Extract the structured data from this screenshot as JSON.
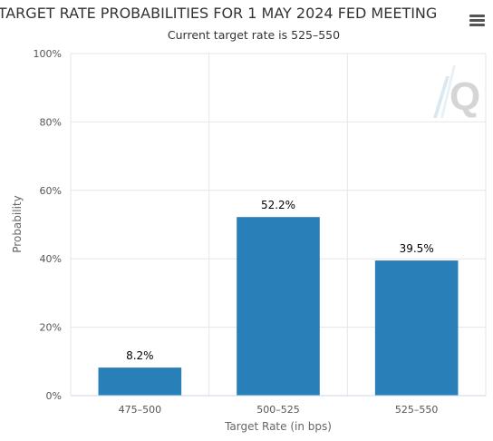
{
  "chart_data": {
    "type": "bar",
    "title": "TARGET RATE PROBABILITIES FOR 1 MAY 2024 FED MEETING",
    "subtitle": "Current target rate is 525–550",
    "xlabel": "Target Rate (in bps)",
    "ylabel": "Probability",
    "categories": [
      "475–500",
      "500–525",
      "525–550"
    ],
    "values": [
      8.2,
      52.2,
      39.5
    ],
    "data_labels": [
      "8.2%",
      "52.2%",
      "39.5%"
    ],
    "ylim": [
      0,
      100
    ],
    "yticks": [
      0,
      20,
      40,
      60,
      80,
      100
    ],
    "ytick_labels": [
      "0%",
      "20%",
      "40%",
      "60%",
      "80%",
      "100%"
    ],
    "grid": true,
    "bar_color": "#2980b9",
    "grid_color": "#e6e6e6"
  },
  "toolbar": {
    "menu_icon": "hamburger-menu-icon"
  },
  "watermark": {
    "icon": "q-logo-watermark"
  }
}
